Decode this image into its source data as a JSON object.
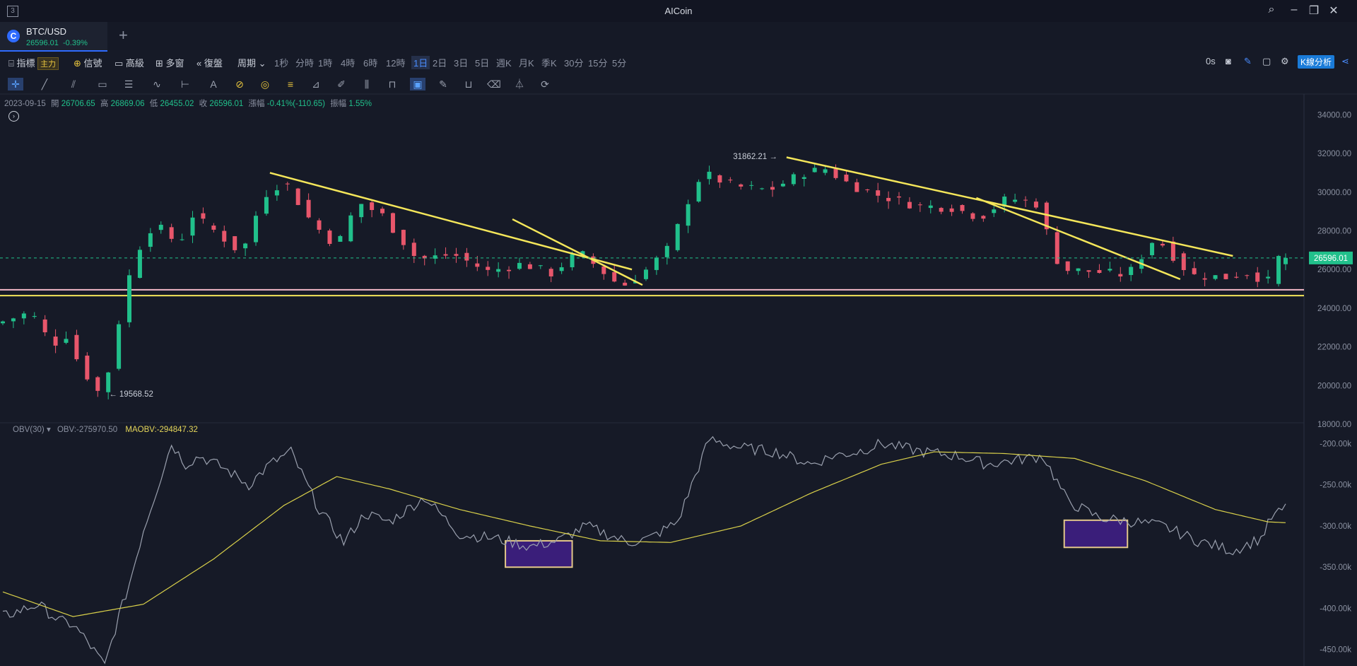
{
  "window": {
    "title": "AICoin",
    "logo": "3",
    "controls": [
      "search-icon",
      "minimize-icon",
      "restore-icon",
      "close-icon"
    ]
  },
  "tab": {
    "symbol": "BTC/USD",
    "price": "26596.01",
    "change": "-0.39%",
    "add": "+"
  },
  "toolbar": {
    "indicators": "指標",
    "main_badge": "主力",
    "signal": "信號",
    "advanced": "高級",
    "multi": "多窗",
    "replay": "復盤",
    "period": "周期",
    "periods": [
      "1秒",
      "分時",
      "1時",
      "4時",
      "6時",
      "12時",
      "1日",
      "2日",
      "3日",
      "5日",
      "週K",
      "月K",
      "季K",
      "30分",
      "15分",
      "5分"
    ],
    "active_period": "1日",
    "timer": "0s",
    "analysis": "K線分析"
  },
  "ohlc": {
    "date": "2023-09-15",
    "open_label": "開",
    "open": "26706.65",
    "high_label": "高",
    "high": "26869.06",
    "low_label": "低",
    "low": "26455.02",
    "close_label": "收",
    "close": "26596.01",
    "chg_label": "漲幅",
    "chg": "-0.41%(-110.65)",
    "amp_label": "振幅",
    "amp": "1.55%"
  },
  "obv": {
    "label": "OBV(30)",
    "obv": "OBV:-275970.50",
    "maobv": "MAOBV:-294847.32"
  },
  "colors": {
    "up": "#21c08b",
    "down": "#e8566b",
    "trend": "#f4e65a",
    "obv": "#9aa0ae",
    "maobv": "#d9d04a"
  },
  "chart_data": [
    {
      "type": "candlestick",
      "ylim": [
        18000,
        35000
      ],
      "yticks": [
        "34000.00",
        "32000.00",
        "30000.00",
        "28000.00",
        "26000.00",
        "24000.00",
        "22000.00",
        "20000.00",
        "18000.00"
      ],
      "last_price": "26596.01",
      "annotations": [
        {
          "text": "31862.21",
          "kind": "high"
        },
        {
          "text": "19568.52",
          "kind": "low"
        }
      ],
      "anchors": [
        [
          0,
          23200
        ],
        [
          10,
          23800
        ],
        [
          16,
          22100
        ],
        [
          20,
          22600
        ],
        [
          24,
          21000
        ],
        [
          29,
          19700
        ],
        [
          33,
          21100
        ],
        [
          36,
          24400
        ],
        [
          40,
          26900
        ],
        [
          45,
          28400
        ],
        [
          52,
          27300
        ],
        [
          56,
          28800
        ],
        [
          63,
          27900
        ],
        [
          70,
          26800
        ],
        [
          76,
          29800
        ],
        [
          82,
          30600
        ],
        [
          90,
          28400
        ],
        [
          97,
          27200
        ],
        [
          103,
          29500
        ],
        [
          110,
          28800
        ],
        [
          120,
          26500
        ],
        [
          130,
          26800
        ],
        [
          140,
          25900
        ],
        [
          150,
          26300
        ],
        [
          158,
          25800
        ],
        [
          166,
          26900
        ],
        [
          178,
          25100
        ],
        [
          184,
          25800
        ],
        [
          192,
          27200
        ],
        [
          196,
          29200
        ],
        [
          201,
          31000
        ],
        [
          210,
          30300
        ],
        [
          220,
          30100
        ],
        [
          230,
          31000
        ],
        [
          236,
          31200
        ],
        [
          243,
          30400
        ],
        [
          250,
          29900
        ],
        [
          262,
          29300
        ],
        [
          272,
          29200
        ],
        [
          280,
          28700
        ],
        [
          288,
          29700
        ],
        [
          296,
          29400
        ],
        [
          303,
          26000
        ],
        [
          312,
          25900
        ],
        [
          322,
          25700
        ],
        [
          330,
          27700
        ],
        [
          340,
          25700
        ],
        [
          350,
          25600
        ],
        [
          358,
          25900
        ],
        [
          361,
          25000
        ],
        [
          365,
          26596
        ]
      ],
      "n": 366
    },
    {
      "type": "line",
      "name": "OBV(30)",
      "ylim": [
        -470000,
        -185000
      ],
      "yticks": [
        "-200.00k",
        "-250.00k",
        "-300.00k",
        "-350.00k",
        "-400.00k",
        "-450.00k"
      ],
      "series": [
        {
          "name": "OBV",
          "values_anchor": [
            [
              0,
              -410000
            ],
            [
              10,
              -395000
            ],
            [
              16,
              -415000
            ],
            [
              20,
              -420000
            ],
            [
              24,
              -440000
            ],
            [
              29,
              -470000
            ],
            [
              33,
              -410000
            ],
            [
              36,
              -370000
            ],
            [
              40,
              -305000
            ],
            [
              45,
              -240000
            ],
            [
              48,
              -200000
            ],
            [
              52,
              -225000
            ],
            [
              56,
              -215000
            ],
            [
              63,
              -230000
            ],
            [
              70,
              -250000
            ],
            [
              76,
              -225000
            ],
            [
              82,
              -210000
            ],
            [
              90,
              -280000
            ],
            [
              97,
              -320000
            ],
            [
              103,
              -285000
            ],
            [
              110,
              -295000
            ],
            [
              120,
              -265000
            ],
            [
              130,
              -310000
            ],
            [
              140,
              -315000
            ],
            [
              150,
              -325000
            ],
            [
              158,
              -318000
            ],
            [
              166,
              -300000
            ],
            [
              178,
              -320000
            ],
            [
              184,
              -315000
            ],
            [
              192,
              -295000
            ],
            [
              196,
              -250000
            ],
            [
              201,
              -195000
            ],
            [
              210,
              -205000
            ],
            [
              220,
              -210000
            ],
            [
              230,
              -225000
            ],
            [
              236,
              -215000
            ],
            [
              243,
              -210000
            ],
            [
              250,
              -200000
            ],
            [
              262,
              -210000
            ],
            [
              272,
              -215000
            ],
            [
              280,
              -225000
            ],
            [
              288,
              -220000
            ],
            [
              296,
              -215000
            ],
            [
              303,
              -270000
            ],
            [
              312,
              -290000
            ],
            [
              322,
              -295000
            ],
            [
              330,
              -300000
            ],
            [
              340,
              -318000
            ],
            [
              350,
              -330000
            ],
            [
              358,
              -315000
            ],
            [
              361,
              -290000
            ],
            [
              365,
              -278000
            ]
          ]
        },
        {
          "name": "MAOBV",
          "values_anchor": [
            [
              0,
              -380000
            ],
            [
              20,
              -410000
            ],
            [
              40,
              -395000
            ],
            [
              60,
              -340000
            ],
            [
              80,
              -275000
            ],
            [
              95,
              -240000
            ],
            [
              110,
              -255000
            ],
            [
              130,
              -280000
            ],
            [
              150,
              -300000
            ],
            [
              170,
              -318000
            ],
            [
              190,
              -320000
            ],
            [
              210,
              -300000
            ],
            [
              230,
              -260000
            ],
            [
              250,
              -225000
            ],
            [
              265,
              -210000
            ],
            [
              285,
              -212000
            ],
            [
              305,
              -218000
            ],
            [
              325,
              -245000
            ],
            [
              345,
              -280000
            ],
            [
              360,
              -295000
            ],
            [
              365,
              -296000
            ]
          ]
        }
      ]
    }
  ]
}
